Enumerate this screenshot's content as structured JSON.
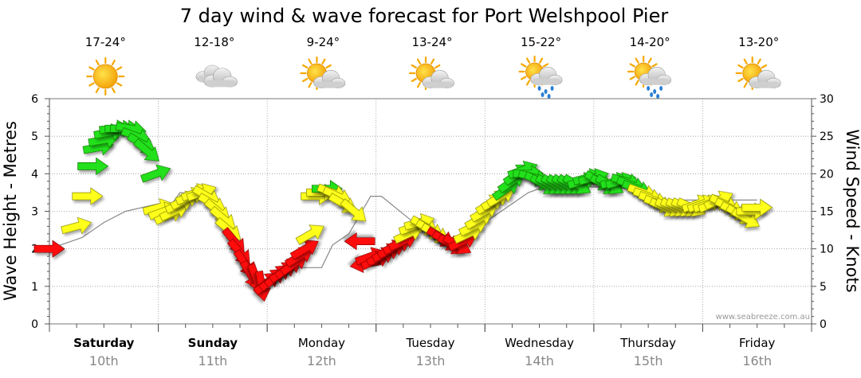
{
  "chart_data": {
    "type": "line",
    "title": "7 day wind & wave forecast for Port Welshpool Pier",
    "ylabel_left": "Wave Height - Metres",
    "ylabel_right": "Wind Speed - Knots",
    "ylim_left": [
      0,
      6
    ],
    "ylim_right": [
      0,
      30
    ],
    "yticks_left": [
      "0",
      "1",
      "2",
      "3",
      "4",
      "5",
      "6"
    ],
    "yticks_right": [
      "0",
      "5",
      "10",
      "15",
      "20",
      "25",
      "30"
    ],
    "grid": true,
    "credit": "www.seabreeze.com.au",
    "legend": "none",
    "days": [
      {
        "name": "Saturday",
        "date": "10th",
        "temp": "17-24°",
        "icon": "sunny-icon",
        "bold": true
      },
      {
        "name": "Sunday",
        "date": "11th",
        "temp": "12-18°",
        "icon": "cloudy-icon",
        "bold": true
      },
      {
        "name": "Monday",
        "date": "12th",
        "temp": "9-24°",
        "icon": "partly-cloudy-icon",
        "bold": false
      },
      {
        "name": "Tuesday",
        "date": "13th",
        "temp": "13-24°",
        "icon": "partly-cloudy-icon",
        "bold": false
      },
      {
        "name": "Wednesday",
        "date": "14th",
        "temp": "15-22°",
        "icon": "showers-icon",
        "bold": false
      },
      {
        "name": "Thursday",
        "date": "15th",
        "temp": "14-20°",
        "icon": "showers-icon",
        "bold": false
      },
      {
        "name": "Friday",
        "date": "16th",
        "temp": "13-20°",
        "icon": "partly-cloudy-icon",
        "bold": false
      }
    ],
    "x_unit": "days from Saturday 00:00",
    "series": [
      {
        "name": "Wind speed",
        "unit": "knots",
        "points": [
          {
            "t": 0.0,
            "v": 10,
            "dir": 0
          },
          {
            "t": 0.25,
            "v": 13,
            "dir": -15
          },
          {
            "t": 0.35,
            "v": 17,
            "dir": 0
          },
          {
            "t": 0.4,
            "v": 21,
            "dir": 0
          },
          {
            "t": 0.45,
            "v": 23.5,
            "dir": -10
          },
          {
            "t": 0.5,
            "v": 24.5,
            "dir": -10
          },
          {
            "t": 0.55,
            "v": 25.5,
            "dir": -10
          },
          {
            "t": 0.6,
            "v": 26,
            "dir": -5
          },
          {
            "t": 0.65,
            "v": 26,
            "dir": 0
          },
          {
            "t": 0.7,
            "v": 26,
            "dir": 0
          },
          {
            "t": 0.75,
            "v": 26,
            "dir": 10
          },
          {
            "t": 0.8,
            "v": 25,
            "dir": 20
          },
          {
            "t": 0.85,
            "v": 24,
            "dir": 30
          },
          {
            "t": 0.9,
            "v": 23,
            "dir": 40
          },
          {
            "t": 0.98,
            "v": 20,
            "dir": -20
          },
          {
            "t": 1.0,
            "v": 15.5,
            "dir": -15
          },
          {
            "t": 1.05,
            "v": 15,
            "dir": -20
          },
          {
            "t": 1.1,
            "v": 14.5,
            "dir": -25
          },
          {
            "t": 1.15,
            "v": 15,
            "dir": -25
          },
          {
            "t": 1.2,
            "v": 16,
            "dir": -25
          },
          {
            "t": 1.25,
            "v": 16.5,
            "dir": -25
          },
          {
            "t": 1.3,
            "v": 17,
            "dir": -20
          },
          {
            "t": 1.35,
            "v": 17.5,
            "dir": -20
          },
          {
            "t": 1.4,
            "v": 17.5,
            "dir": -20
          },
          {
            "t": 1.45,
            "v": 17,
            "dir": 30
          },
          {
            "t": 1.5,
            "v": 16,
            "dir": 30
          },
          {
            "t": 1.55,
            "v": 15,
            "dir": 40
          },
          {
            "t": 1.6,
            "v": 14,
            "dir": 40
          },
          {
            "t": 1.65,
            "v": 12.5,
            "dir": 40
          },
          {
            "t": 1.7,
            "v": 11,
            "dir": 50
          },
          {
            "t": 1.75,
            "v": 9.5,
            "dir": 50
          },
          {
            "t": 1.8,
            "v": 8,
            "dir": 55
          },
          {
            "t": 1.85,
            "v": 6.5,
            "dir": 60
          },
          {
            "t": 1.9,
            "v": 6,
            "dir": 70
          },
          {
            "t": 1.95,
            "v": 5,
            "dir": 80
          },
          {
            "t": 2.0,
            "v": 5.5,
            "dir": -40
          },
          {
            "t": 2.05,
            "v": 6,
            "dir": -40
          },
          {
            "t": 2.1,
            "v": 6.5,
            "dir": -40
          },
          {
            "t": 2.15,
            "v": 7,
            "dir": -35
          },
          {
            "t": 2.2,
            "v": 7.5,
            "dir": -35
          },
          {
            "t": 2.25,
            "v": 8,
            "dir": -35
          },
          {
            "t": 2.3,
            "v": 9,
            "dir": -30
          },
          {
            "t": 2.35,
            "v": 10,
            "dir": -30
          },
          {
            "t": 2.4,
            "v": 12,
            "dir": -30
          },
          {
            "t": 2.45,
            "v": 17,
            "dir": 0
          },
          {
            "t": 2.5,
            "v": 17.5,
            "dir": 0
          },
          {
            "t": 2.55,
            "v": 18,
            "dir": 0
          },
          {
            "t": 2.6,
            "v": 17.5,
            "dir": 20
          },
          {
            "t": 2.65,
            "v": 17,
            "dir": 25
          },
          {
            "t": 2.7,
            "v": 16,
            "dir": 30
          },
          {
            "t": 2.8,
            "v": 15,
            "dir": 40
          },
          {
            "t": 2.85,
            "v": 11,
            "dir": 180
          },
          {
            "t": 2.9,
            "v": 8,
            "dir": 170
          },
          {
            "t": 2.95,
            "v": 9,
            "dir": -20
          },
          {
            "t": 3.0,
            "v": 8.5,
            "dir": -25
          },
          {
            "t": 3.05,
            "v": 9,
            "dir": -25
          },
          {
            "t": 3.1,
            "v": 9.5,
            "dir": -25
          },
          {
            "t": 3.15,
            "v": 10,
            "dir": -25
          },
          {
            "t": 3.2,
            "v": 10.5,
            "dir": -25
          },
          {
            "t": 3.25,
            "v": 11,
            "dir": -25
          },
          {
            "t": 3.3,
            "v": 12,
            "dir": -25
          },
          {
            "t": 3.35,
            "v": 13,
            "dir": -20
          },
          {
            "t": 3.4,
            "v": 13.5,
            "dir": -15
          },
          {
            "t": 3.45,
            "v": 13,
            "dir": 30
          },
          {
            "t": 3.5,
            "v": 12.5,
            "dir": 30
          },
          {
            "t": 3.55,
            "v": 12,
            "dir": 30
          },
          {
            "t": 3.6,
            "v": 11.5,
            "dir": 30
          },
          {
            "t": 3.65,
            "v": 11,
            "dir": 30
          },
          {
            "t": 3.7,
            "v": 10.5,
            "dir": 30
          },
          {
            "t": 3.75,
            "v": 10.5,
            "dir": 30
          },
          {
            "t": 3.8,
            "v": 11,
            "dir": -25
          },
          {
            "t": 3.85,
            "v": 12,
            "dir": -25
          },
          {
            "t": 3.9,
            "v": 13,
            "dir": -25
          },
          {
            "t": 3.95,
            "v": 14,
            "dir": -30
          },
          {
            "t": 4.0,
            "v": 15,
            "dir": -30
          },
          {
            "t": 4.05,
            "v": 16,
            "dir": -30
          },
          {
            "t": 4.1,
            "v": 16.5,
            "dir": -30
          },
          {
            "t": 4.15,
            "v": 17,
            "dir": -30
          },
          {
            "t": 4.2,
            "v": 18,
            "dir": -35
          },
          {
            "t": 4.25,
            "v": 19,
            "dir": -35
          },
          {
            "t": 4.3,
            "v": 20,
            "dir": -35
          },
          {
            "t": 4.35,
            "v": 20.5,
            "dir": -20
          },
          {
            "t": 4.4,
            "v": 20,
            "dir": 0
          },
          {
            "t": 4.45,
            "v": 19.5,
            "dir": 15
          },
          {
            "t": 4.5,
            "v": 19,
            "dir": 25
          },
          {
            "t": 4.55,
            "v": 18.5,
            "dir": 30
          },
          {
            "t": 4.6,
            "v": 18.5,
            "dir": 30
          },
          {
            "t": 4.65,
            "v": 18.5,
            "dir": 30
          },
          {
            "t": 4.7,
            "v": 18.5,
            "dir": 30
          },
          {
            "t": 4.75,
            "v": 18.5,
            "dir": 30
          },
          {
            "t": 4.8,
            "v": 18.5,
            "dir": 30
          },
          {
            "t": 4.85,
            "v": 18.5,
            "dir": 30
          },
          {
            "t": 4.9,
            "v": 19,
            "dir": -15
          },
          {
            "t": 4.95,
            "v": 19.5,
            "dir": -15
          },
          {
            "t": 5.0,
            "v": 19.5,
            "dir": -15
          },
          {
            "t": 5.05,
            "v": 19,
            "dir": 30
          },
          {
            "t": 5.1,
            "v": 18.5,
            "dir": 30
          },
          {
            "t": 5.15,
            "v": 18.5,
            "dir": 30
          },
          {
            "t": 5.2,
            "v": 19,
            "dir": -15
          },
          {
            "t": 5.25,
            "v": 19,
            "dir": -15
          },
          {
            "t": 5.3,
            "v": 19,
            "dir": 15
          },
          {
            "t": 5.35,
            "v": 18.5,
            "dir": 20
          },
          {
            "t": 5.4,
            "v": 18,
            "dir": 20
          },
          {
            "t": 5.45,
            "v": 17.5,
            "dir": 20
          },
          {
            "t": 5.5,
            "v": 17,
            "dir": 20
          },
          {
            "t": 5.55,
            "v": 16.5,
            "dir": 20
          },
          {
            "t": 5.6,
            "v": 16,
            "dir": 20
          },
          {
            "t": 5.65,
            "v": 15.5,
            "dir": 25
          },
          {
            "t": 5.7,
            "v": 15.5,
            "dir": 25
          },
          {
            "t": 5.75,
            "v": 15.5,
            "dir": 25
          },
          {
            "t": 5.8,
            "v": 15.5,
            "dir": 25
          },
          {
            "t": 5.85,
            "v": 15.5,
            "dir": 25
          },
          {
            "t": 5.9,
            "v": 15.5,
            "dir": 25
          },
          {
            "t": 5.95,
            "v": 16,
            "dir": -20
          },
          {
            "t": 6.0,
            "v": 16,
            "dir": -20
          },
          {
            "t": 6.05,
            "v": 16,
            "dir": -20
          },
          {
            "t": 6.1,
            "v": 16,
            "dir": -20
          },
          {
            "t": 6.15,
            "v": 16.5,
            "dir": -25
          },
          {
            "t": 6.2,
            "v": 16,
            "dir": 25
          },
          {
            "t": 6.25,
            "v": 15.5,
            "dir": 25
          },
          {
            "t": 6.3,
            "v": 15,
            "dir": 25
          },
          {
            "t": 6.35,
            "v": 14.5,
            "dir": 30
          },
          {
            "t": 6.4,
            "v": 14,
            "dir": 30
          },
          {
            "t": 6.45,
            "v": 15,
            "dir": 0
          },
          {
            "t": 6.5,
            "v": 15.5,
            "dir": 0
          }
        ]
      },
      {
        "name": "Wave height",
        "unit": "metres",
        "points": [
          {
            "t": 0.0,
            "v": 2.0
          },
          {
            "t": 0.3,
            "v": 2.3
          },
          {
            "t": 0.5,
            "v": 2.7
          },
          {
            "t": 0.7,
            "v": 3.0
          },
          {
            "t": 1.0,
            "v": 3.2
          },
          {
            "t": 1.1,
            "v": 3.1
          },
          {
            "t": 1.2,
            "v": 3.5
          },
          {
            "t": 1.5,
            "v": 3.4
          },
          {
            "t": 1.7,
            "v": 2.3
          },
          {
            "t": 1.9,
            "v": 1.2
          },
          {
            "t": 2.0,
            "v": 1.1
          },
          {
            "t": 2.3,
            "v": 1.5
          },
          {
            "t": 2.5,
            "v": 1.5
          },
          {
            "t": 2.6,
            "v": 2.1
          },
          {
            "t": 2.75,
            "v": 2.4
          },
          {
            "t": 2.95,
            "v": 3.4
          },
          {
            "t": 3.05,
            "v": 3.4
          },
          {
            "t": 3.6,
            "v": 2.1
          },
          {
            "t": 3.7,
            "v": 2.1
          },
          {
            "t": 4.4,
            "v": 3.5
          },
          {
            "t": 4.6,
            "v": 3.7
          },
          {
            "t": 5.4,
            "v": 3.6
          },
          {
            "t": 5.6,
            "v": 3.3
          },
          {
            "t": 6.5,
            "v": 3.3
          }
        ]
      }
    ]
  }
}
